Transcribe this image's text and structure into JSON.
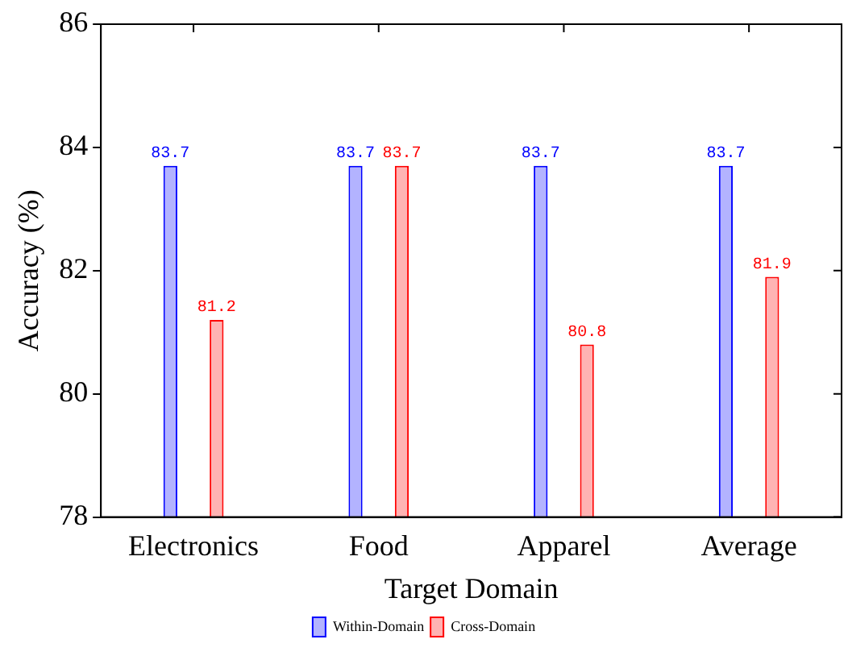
{
  "chart_data": {
    "type": "bar",
    "xlabel": "Target Domain",
    "ylabel": "Accuracy (%)",
    "categories": [
      "Electronics",
      "Food",
      "Apparel",
      "Average"
    ],
    "series": [
      {
        "name": "Within-Domain",
        "color": "#b3b3ff",
        "values": [
          83.7,
          83.7,
          83.7,
          83.7
        ]
      },
      {
        "name": "Cross-Domain",
        "color": "#ffb3b3",
        "values": [
          81.2,
          83.7,
          80.8,
          81.9
        ]
      }
    ],
    "ylim": [
      78,
      86
    ],
    "yticks": [
      78,
      80,
      82,
      84,
      86
    ],
    "grid": false,
    "legend": "bottom",
    "data_labels": true
  }
}
